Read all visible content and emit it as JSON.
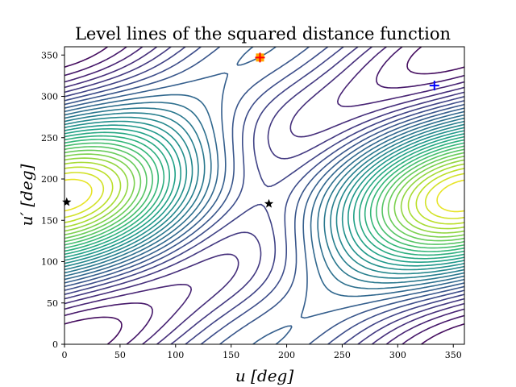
{
  "chart_data": {
    "type": "contour",
    "title": "Level lines of the squared distance function",
    "xlabel": "u [deg]",
    "ylabel": "u′ [deg]",
    "xlim": [
      0,
      360
    ],
    "ylim": [
      0,
      360
    ],
    "xticks": [
      0,
      50,
      100,
      150,
      200,
      250,
      300,
      350
    ],
    "yticks": [
      0,
      50,
      100,
      150,
      200,
      250,
      300,
      350
    ],
    "colormap": "viridis",
    "contour_levels": 30,
    "grid": false,
    "markers": [
      {
        "x": 176,
        "y": 347,
        "symbol": "filled-square",
        "color": "#ffa500"
      },
      {
        "x": 176,
        "y": 347,
        "symbol": "plus",
        "color": "#ff0000"
      },
      {
        "x": 333,
        "y": 313,
        "symbol": "plus",
        "color": "#0000ff"
      },
      {
        "x": 2,
        "y": 172,
        "symbol": "star",
        "color": "#000000"
      },
      {
        "x": 184,
        "y": 170,
        "symbol": "star",
        "color": "#000000"
      }
    ]
  }
}
